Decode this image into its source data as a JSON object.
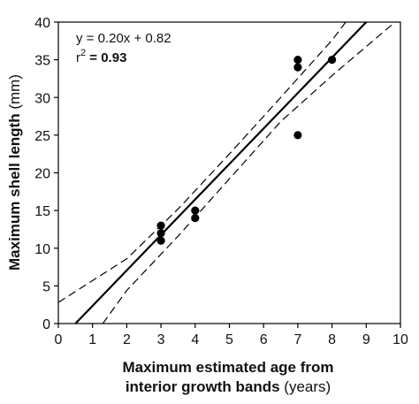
{
  "chart_data": {
    "type": "scatter",
    "title": "",
    "xlabel": {
      "line1": "Maximum estimated age from",
      "line2_main": "interior growth bands",
      "line2_unit": "(years)"
    },
    "ylabel": {
      "main": "Maximum shell length",
      "unit": "(mm)"
    },
    "xlim": [
      0,
      10
    ],
    "ylim": [
      0,
      40
    ],
    "xticks": [
      "0",
      "1",
      "2",
      "3",
      "4",
      "5",
      "6",
      "7",
      "8",
      "9",
      "10"
    ],
    "yticks": [
      "0",
      "5",
      "10",
      "15",
      "20",
      "25",
      "30",
      "35",
      "40"
    ],
    "grid": false,
    "points": [
      {
        "x": 3,
        "y": 11
      },
      {
        "x": 3,
        "y": 12
      },
      {
        "x": 3,
        "y": 13
      },
      {
        "x": 4,
        "y": 14
      },
      {
        "x": 4,
        "y": 15
      },
      {
        "x": 7,
        "y": 25
      },
      {
        "x": 7,
        "y": 34
      },
      {
        "x": 7,
        "y": 35
      },
      {
        "x": 8,
        "y": 35
      }
    ],
    "regression_line": {
      "x": [
        0.5,
        9.0
      ],
      "y": [
        0.0,
        40.0
      ]
    },
    "confidence_upper": {
      "x": [
        0.0,
        2.0,
        3.5,
        5.0,
        6.5,
        8.0,
        8.4
      ],
      "y": [
        2.8,
        8.6,
        15.2,
        22.5,
        30.0,
        37.6,
        40.0
      ]
    },
    "confidence_lower": {
      "x": [
        1.3,
        2.0,
        3.5,
        5.0,
        6.5,
        8.0,
        10.0
      ],
      "y": [
        0.0,
        4.4,
        11.6,
        19.2,
        26.8,
        32.9,
        40.6
      ]
    },
    "annotations": {
      "equation": "y = 0.20x + 0.82",
      "r2_prefix": "r",
      "r2_sup": "2",
      "r2_value": " = 0.93"
    },
    "colors": {
      "points": "#000000",
      "line": "#000000",
      "axis": "#000000"
    }
  }
}
